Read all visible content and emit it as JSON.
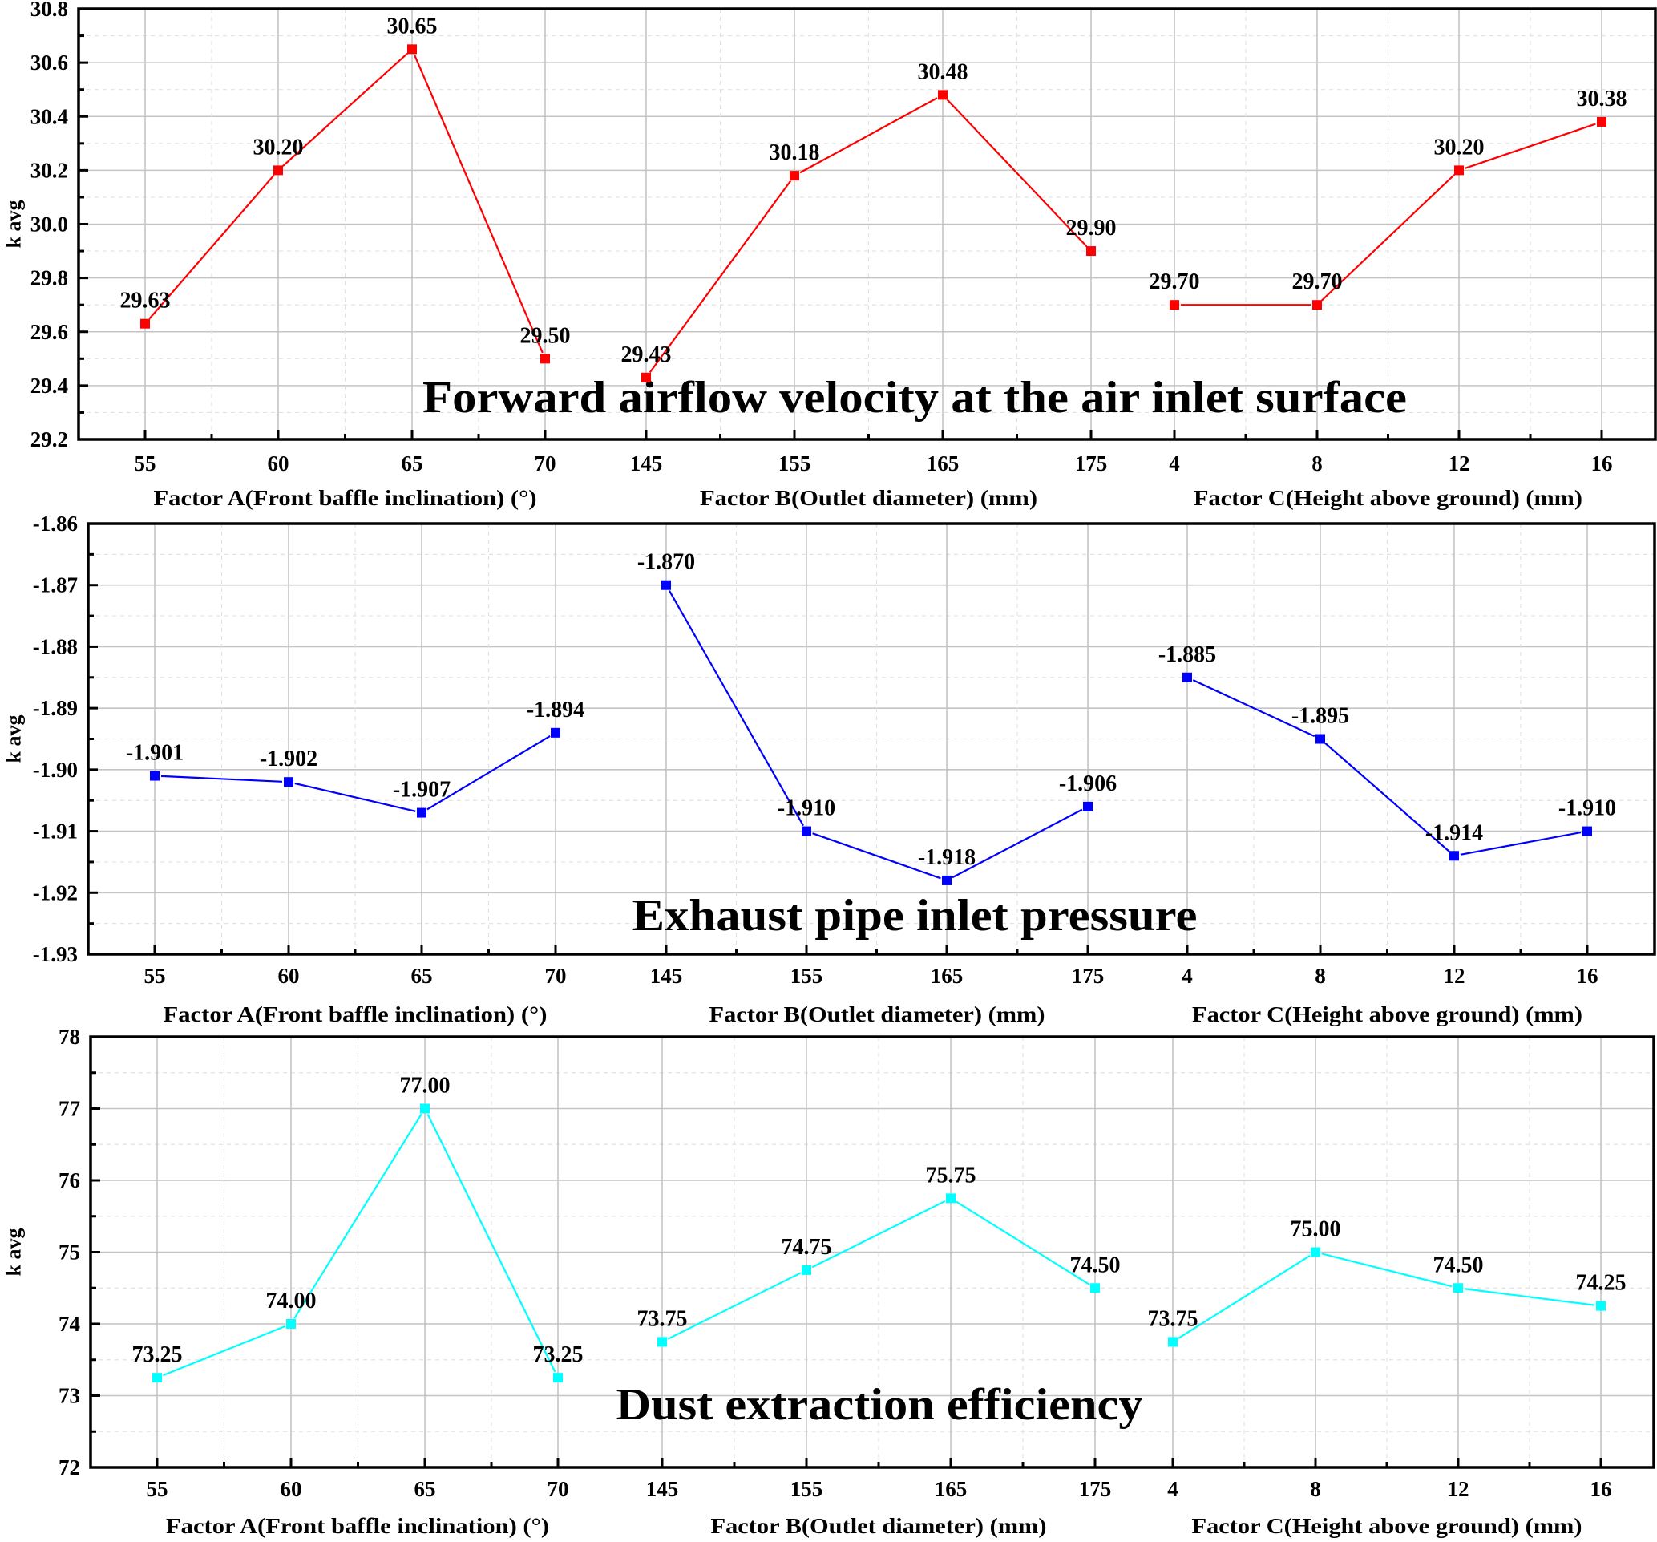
{
  "figure": {
    "panels": [
      {
        "title": "Forward airflow velocity at the air inlet surface"
      },
      {
        "title": "Exhaust pipe inlet pressure"
      },
      {
        "title": "Dust extraction efficiency"
      }
    ]
  },
  "chart_data": [
    {
      "type": "line",
      "title": "Forward airflow velocity at the air inlet surface",
      "ylabel": "k avg",
      "ylim": [
        29.2,
        30.8
      ],
      "yticks": [
        "29.2",
        "29.4",
        "29.6",
        "29.8",
        "30.0",
        "30.2",
        "30.4",
        "30.6",
        "30.8"
      ],
      "grid": true,
      "color": "#ff0000",
      "marker": "square",
      "groups": [
        {
          "xlabel": "Factor A(Front baffle inclination) (°)",
          "x": [
            "55",
            "60",
            "65",
            "70"
          ],
          "values": [
            29.63,
            30.2,
            30.65,
            29.5
          ],
          "labels": [
            "29.63",
            "30.20",
            "30.65",
            "29.50"
          ]
        },
        {
          "xlabel": "Factor B(Outlet diameter) (mm)",
          "x": [
            "145",
            "155",
            "165",
            "175"
          ],
          "values": [
            29.43,
            30.18,
            30.48,
            29.9
          ],
          "labels": [
            "29.43",
            "30.18",
            "30.48",
            "29.90"
          ]
        },
        {
          "xlabel": "Factor C(Height above ground) (mm)",
          "x": [
            "4",
            "8",
            "12",
            "16"
          ],
          "values": [
            29.7,
            29.7,
            30.2,
            30.38
          ],
          "labels": [
            "29.70",
            "29.70",
            "30.20",
            "30.38"
          ]
        }
      ]
    },
    {
      "type": "line",
      "title": "Exhaust pipe inlet pressure",
      "ylabel": "k avg",
      "ylim": [
        -1.93,
        -1.86
      ],
      "yticks": [
        "-1.93",
        "-1.92",
        "-1.91",
        "-1.90",
        "-1.89",
        "-1.88",
        "-1.87",
        "-1.86"
      ],
      "grid": true,
      "color": "#0000ff",
      "marker": "square",
      "groups": [
        {
          "xlabel": "Factor A(Front baffle inclination) (°)",
          "x": [
            "55",
            "60",
            "65",
            "70"
          ],
          "values": [
            -1.901,
            -1.902,
            -1.907,
            -1.894
          ],
          "labels": [
            "-1.901",
            "-1.902",
            "-1.907",
            "-1.894"
          ]
        },
        {
          "xlabel": "Factor B(Outlet diameter) (mm)",
          "x": [
            "145",
            "155",
            "165",
            "175"
          ],
          "values": [
            -1.87,
            -1.91,
            -1.918,
            -1.906
          ],
          "labels": [
            "-1.870",
            "-1.910",
            "-1.918",
            "-1.906"
          ]
        },
        {
          "xlabel": "Factor C(Height above ground) (mm)",
          "x": [
            "4",
            "8",
            "12",
            "16"
          ],
          "values": [
            -1.885,
            -1.895,
            -1.914,
            -1.91
          ],
          "labels": [
            "-1.885",
            "-1.895",
            "-1.914",
            "-1.910"
          ]
        }
      ]
    },
    {
      "type": "line",
      "title": "Dust extraction efficiency",
      "ylabel": "k avg",
      "ylim": [
        72,
        78
      ],
      "yticks": [
        "72",
        "73",
        "74",
        "75",
        "76",
        "77",
        "78"
      ],
      "grid": true,
      "color": "#00ffff",
      "marker": "square",
      "groups": [
        {
          "xlabel": "Factor A(Front baffle inclination) (°)",
          "x": [
            "55",
            "60",
            "65",
            "70"
          ],
          "values": [
            73.25,
            74.0,
            77.0,
            73.25
          ],
          "labels": [
            "73.25",
            "74.00",
            "77.00",
            "73.25"
          ]
        },
        {
          "xlabel": "Factor B(Outlet diameter) (mm)",
          "x": [
            "145",
            "155",
            "165",
            "175"
          ],
          "values": [
            73.75,
            74.75,
            75.75,
            74.5
          ],
          "labels": [
            "73.75",
            "74.75",
            "75.75",
            "74.50"
          ]
        },
        {
          "xlabel": "Factor C(Height above ground) (mm)",
          "x": [
            "4",
            "8",
            "12",
            "16"
          ],
          "values": [
            73.75,
            75.0,
            74.5,
            74.25
          ],
          "labels": [
            "73.75",
            "75.00",
            "74.50",
            "74.25"
          ]
        }
      ]
    }
  ]
}
